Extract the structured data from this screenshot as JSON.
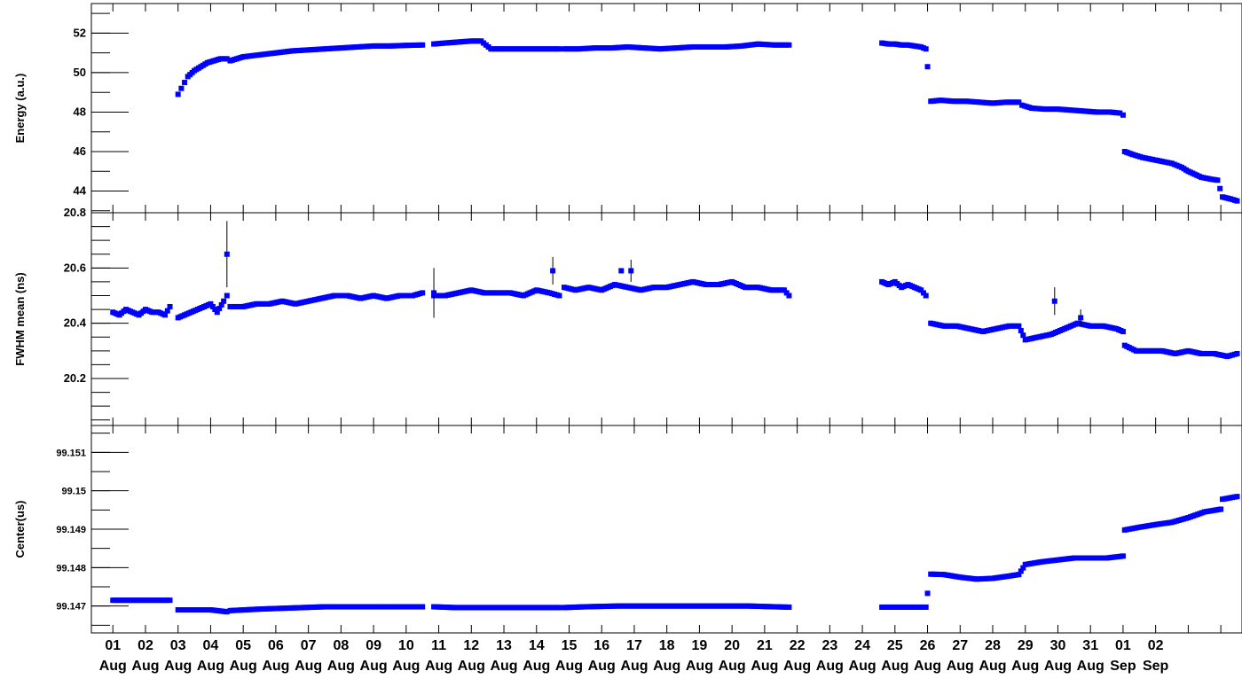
{
  "colors": {
    "marker": "#0000ff",
    "axis": "#000000",
    "background": "#ffffff"
  },
  "chart_data": [
    {
      "type": "scatter",
      "ylabel": "Energy (a.u.)",
      "ylim": [
        42.9,
        53.5
      ],
      "ytick_labels": [
        "44",
        "46",
        "48",
        "50",
        "52"
      ],
      "grid": false,
      "segments": [
        {
          "x": [
            2.0,
            2.1,
            2.2,
            2.3,
            2.5,
            2.7,
            2.9,
            3.1,
            3.3,
            3.5
          ],
          "y": [
            48.9,
            49.2,
            49.5,
            49.8,
            50.1,
            50.3,
            50.5,
            50.6,
            50.7,
            50.7
          ]
        },
        {
          "x": [
            3.6,
            4.0,
            4.5,
            5.0,
            5.5,
            6.0,
            6.5,
            7.0,
            7.5,
            8.0,
            8.5,
            9.0,
            9.5
          ],
          "y": [
            50.6,
            50.8,
            50.9,
            51.0,
            51.1,
            51.15,
            51.2,
            51.25,
            51.3,
            51.35,
            51.35,
            51.38,
            51.4
          ]
        },
        {
          "x": [
            9.85,
            10.2,
            10.6,
            11.0,
            11.3,
            11.6,
            12.0,
            12.5,
            13.0,
            13.5,
            13.7
          ],
          "y": [
            51.45,
            51.5,
            51.55,
            51.6,
            51.6,
            51.2,
            51.2,
            51.2,
            51.2,
            51.2,
            51.2
          ]
        },
        {
          "x": [
            13.85,
            14.3,
            14.8,
            15.3,
            15.8,
            16.3,
            16.8,
            17.3,
            17.8,
            18.3,
            18.8,
            19.3,
            19.8,
            20.3,
            20.75
          ],
          "y": [
            51.2,
            51.2,
            51.25,
            51.25,
            51.3,
            51.25,
            51.2,
            51.25,
            51.3,
            51.3,
            51.3,
            51.35,
            51.45,
            51.4,
            51.4
          ]
        },
        {
          "x": [
            23.6,
            23.8,
            24.0,
            24.2,
            24.4,
            24.6,
            24.8,
            24.95,
            25.0
          ],
          "y": [
            51.5,
            51.45,
            51.45,
            51.4,
            51.4,
            51.35,
            51.3,
            51.2,
            50.3
          ]
        },
        {
          "x": [
            25.1,
            25.4,
            25.8,
            26.2,
            26.6,
            27.0,
            27.4,
            27.8,
            27.9,
            28.2,
            28.6,
            29.0,
            29.4,
            29.8,
            30.2,
            30.6,
            30.9,
            31.0
          ],
          "y": [
            48.55,
            48.6,
            48.55,
            48.55,
            48.5,
            48.45,
            48.5,
            48.5,
            48.35,
            48.2,
            48.15,
            48.15,
            48.1,
            48.05,
            48.0,
            48.0,
            47.95,
            47.85
          ]
        },
        {
          "x": [
            31.05,
            31.3,
            31.6,
            31.9,
            32.2,
            32.5,
            32.8,
            33.0,
            33.2,
            33.4,
            33.7,
            33.9,
            34.05,
            34.3,
            34.5
          ],
          "y": [
            46.0,
            45.85,
            45.7,
            45.6,
            45.5,
            45.4,
            45.2,
            45.0,
            44.85,
            44.7,
            44.6,
            44.55,
            43.7,
            43.6,
            43.5
          ]
        }
      ]
    },
    {
      "type": "scatter",
      "ylabel": "FWHM mean (ns)",
      "ylim": [
        20.03,
        20.8
      ],
      "ytick_labels": [
        "20.2",
        "20.4",
        "20.6",
        "20.8"
      ],
      "grid": false,
      "segments": [
        {
          "x": [
            0,
            0.2,
            0.4,
            0.6,
            0.8,
            1.0,
            1.2,
            1.4,
            1.6,
            1.75
          ],
          "y": [
            20.44,
            20.43,
            20.45,
            20.44,
            20.43,
            20.45,
            20.44,
            20.44,
            20.43,
            20.46
          ]
        },
        {
          "x": [
            2.0,
            2.2,
            2.4,
            2.6,
            2.8,
            3.0,
            3.2,
            3.4,
            3.5
          ],
          "y": [
            20.42,
            20.43,
            20.44,
            20.45,
            20.46,
            20.47,
            20.44,
            20.48,
            20.5
          ]
        },
        {
          "x": [
            3.6,
            4.0,
            4.4,
            4.8,
            5.2,
            5.6,
            6.0,
            6.4,
            6.8,
            7.2,
            7.6,
            8.0,
            8.4,
            8.8,
            9.2,
            9.5
          ],
          "y": [
            20.46,
            20.46,
            20.47,
            20.47,
            20.48,
            20.47,
            20.48,
            20.49,
            20.5,
            20.5,
            20.49,
            20.5,
            20.49,
            20.5,
            20.5,
            20.51
          ]
        },
        {
          "x": [
            9.85,
            10.2,
            10.6,
            11.0,
            11.4,
            11.8,
            12.2,
            12.6,
            13.0,
            13.4,
            13.7
          ],
          "y": [
            20.5,
            20.5,
            20.51,
            20.52,
            20.51,
            20.51,
            20.51,
            20.5,
            20.52,
            20.51,
            20.5
          ]
        },
        {
          "x": [
            13.85,
            14.2,
            14.6,
            15.0,
            15.4,
            15.8,
            16.2,
            16.6,
            17.0,
            17.4,
            17.8,
            18.2,
            18.6,
            19.0,
            19.4,
            19.8,
            20.2,
            20.6,
            20.75
          ],
          "y": [
            20.53,
            20.52,
            20.53,
            20.52,
            20.54,
            20.53,
            20.52,
            20.53,
            20.53,
            20.54,
            20.55,
            20.54,
            20.54,
            20.55,
            20.53,
            20.53,
            20.52,
            20.52,
            20.5
          ]
        },
        {
          "x": [
            23.6,
            23.8,
            24.0,
            24.2,
            24.4,
            24.6,
            24.8,
            24.95
          ],
          "y": [
            20.55,
            20.54,
            20.55,
            20.53,
            20.54,
            20.53,
            20.52,
            20.5
          ]
        },
        {
          "x": [
            25.1,
            25.5,
            25.9,
            26.3,
            26.7,
            27.1,
            27.5,
            27.8,
            28.0,
            28.4,
            28.8,
            29.2,
            29.6,
            30.0,
            30.4,
            30.8,
            31.0
          ],
          "y": [
            20.4,
            20.39,
            20.39,
            20.38,
            20.37,
            20.38,
            20.39,
            20.39,
            20.34,
            20.35,
            20.36,
            20.38,
            20.4,
            20.39,
            20.39,
            20.38,
            20.37
          ]
        },
        {
          "x": [
            31.05,
            31.4,
            31.8,
            32.2,
            32.6,
            33.0,
            33.4,
            33.8,
            34.2,
            34.5
          ],
          "y": [
            20.32,
            20.3,
            20.3,
            20.3,
            20.29,
            20.3,
            20.29,
            20.29,
            20.28,
            20.29
          ]
        }
      ],
      "outliers": [
        {
          "x": 3.5,
          "y": 20.65,
          "yerr": 0.12
        },
        {
          "x": 9.85,
          "y": 20.51,
          "yerr": 0.09
        },
        {
          "x": 13.5,
          "y": 20.59,
          "yerr": 0.05
        },
        {
          "x": 15.6,
          "y": 20.59,
          "yerr": 0.0
        },
        {
          "x": 15.9,
          "y": 20.59,
          "yerr": 0.04
        },
        {
          "x": 28.9,
          "y": 20.48,
          "yerr": 0.05
        },
        {
          "x": 29.7,
          "y": 20.42,
          "yerr": 0.03
        }
      ]
    },
    {
      "type": "scatter",
      "ylabel": "Center(us)",
      "ylim": [
        99.1463,
        99.1517
      ],
      "ytick_labels": [
        "99.147",
        "99.148",
        "99.149",
        "99.15",
        "99.151"
      ],
      "grid": false,
      "segments": [
        {
          "x": [
            0,
            0.2,
            0.4,
            0.6,
            0.8,
            1.0,
            1.2,
            1.4,
            1.6,
            1.75
          ],
          "y": [
            99.14715,
            99.14715,
            99.14715,
            99.14715,
            99.14715,
            99.14715,
            99.14715,
            99.14715,
            99.14715,
            99.14715
          ]
        },
        {
          "x": [
            2.0,
            2.5,
            3.0,
            3.5
          ],
          "y": [
            99.1469,
            99.1469,
            99.1469,
            99.14685
          ]
        },
        {
          "x": [
            3.6,
            4.5,
            5.5,
            6.5,
            7.5,
            8.5,
            9.5
          ],
          "y": [
            99.14688,
            99.14692,
            99.14695,
            99.14698,
            99.14698,
            99.14698,
            99.14698
          ]
        },
        {
          "x": [
            9.85,
            10.5,
            11.5,
            12.5,
            13.5,
            13.7
          ],
          "y": [
            99.14698,
            99.14696,
            99.14696,
            99.14696,
            99.14696,
            99.14696
          ]
        },
        {
          "x": [
            13.85,
            14.5,
            15.5,
            16.5,
            17.5,
            18.5,
            19.5,
            20.75
          ],
          "y": [
            99.14696,
            99.14698,
            99.147,
            99.147,
            99.147,
            99.147,
            99.147,
            99.14697
          ]
        },
        {
          "x": [
            23.6,
            24.0,
            24.5,
            24.95,
            25.0
          ],
          "y": [
            99.14697,
            99.14697,
            99.14697,
            99.14697,
            99.14733
          ]
        },
        {
          "x": [
            25.1,
            25.5,
            26.0,
            26.5,
            27.0,
            27.5,
            27.8,
            28.0,
            28.5,
            29.0,
            29.5,
            30.0,
            30.5,
            31.0
          ],
          "y": [
            99.14783,
            99.14782,
            99.14775,
            99.1477,
            99.14772,
            99.14778,
            99.14782,
            99.14808,
            99.14815,
            99.1482,
            99.14825,
            99.14825,
            99.14825,
            99.1483
          ]
        },
        {
          "x": [
            31.05,
            31.5,
            32.0,
            32.5,
            33.0,
            33.5,
            34.0,
            34.05,
            34.5
          ],
          "y": [
            99.14898,
            99.14905,
            99.14912,
            99.14918,
            99.1493,
            99.14945,
            99.14952,
            99.14978,
            99.14985
          ]
        }
      ]
    }
  ],
  "x_axis": {
    "tick_day_labels": [
      "01",
      "02",
      "03",
      "04",
      "05",
      "06",
      "07",
      "08",
      "09",
      "10",
      "11",
      "12",
      "13",
      "14",
      "15",
      "16",
      "17",
      "18",
      "19",
      "20",
      "21",
      "22",
      "23",
      "24",
      "25",
      "26",
      "27",
      "28",
      "29",
      "30",
      "31",
      "01",
      "02"
    ],
    "tick_month_labels": [
      "Aug",
      "Aug",
      "Aug",
      "Aug",
      "Aug",
      "Aug",
      "Aug",
      "Aug",
      "Aug",
      "Aug",
      "Aug",
      "Aug",
      "Aug",
      "Aug",
      "Aug",
      "Aug",
      "Aug",
      "Aug",
      "Aug",
      "Aug",
      "Aug",
      "Aug",
      "Aug",
      "Aug",
      "Aug",
      "Aug",
      "Aug",
      "Aug",
      "Aug",
      "Aug",
      "Aug",
      "Sep",
      "Sep"
    ]
  }
}
